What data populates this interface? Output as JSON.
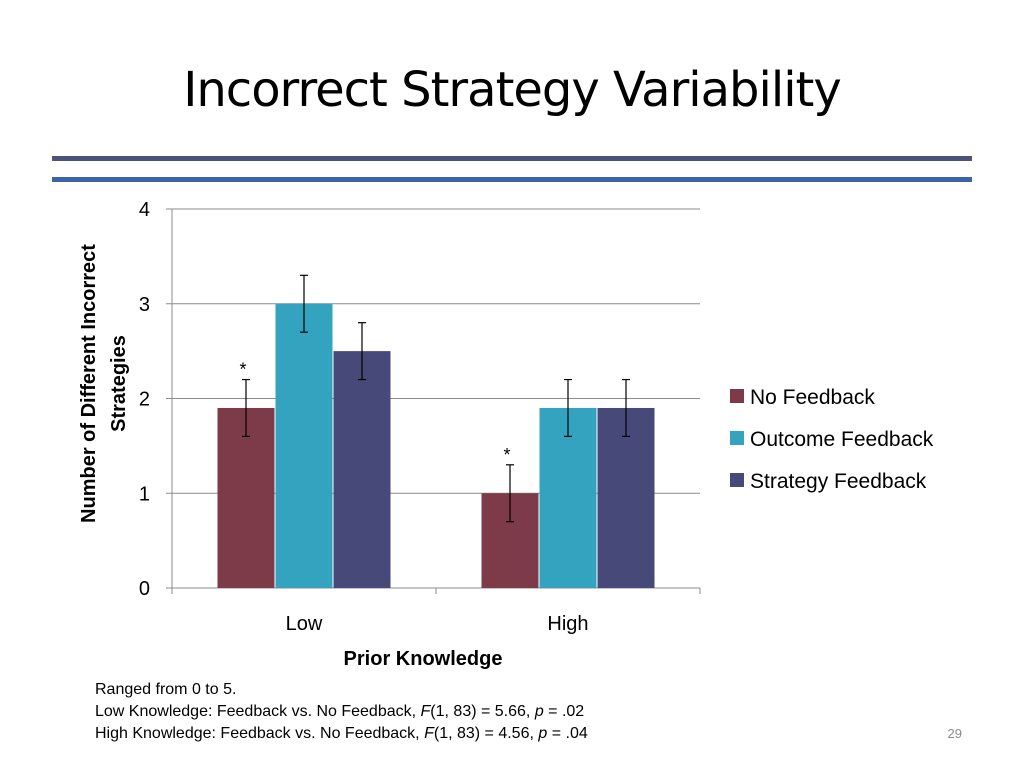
{
  "slide": {
    "title": "Incorrect Strategy Variability",
    "number": "29",
    "notes": {
      "range": "Ranged from 0 to 5.",
      "low": {
        "prefix": "Low Knowledge: Feedback vs. No Feedback, ",
        "f": "F",
        "stats": "(1, 83) = 5.66, ",
        "p": "p",
        "pvalue": " = .02"
      },
      "high": {
        "prefix": "High Knowledge: Feedback vs. No Feedback, ",
        "f": "F",
        "stats": "(1, 83) = 4.56, ",
        "p": "p",
        "pvalue": " = .04"
      }
    },
    "colors": {
      "rule_top": "#4a5279",
      "rule_bottom": "#3a64a6"
    }
  },
  "chart_data": {
    "type": "bar",
    "categories": [
      "Low",
      "High"
    ],
    "series": [
      {
        "name": "No Feedback",
        "values": [
          1.9,
          1.0
        ],
        "errors": [
          0.3,
          0.3
        ],
        "color": "#7d3a49"
      },
      {
        "name": "Outcome Feedback",
        "values": [
          3.0,
          1.9
        ],
        "errors": [
          0.3,
          0.3
        ],
        "color": "#33a3c0"
      },
      {
        "name": "Strategy Feedback",
        "values": [
          2.5,
          1.9
        ],
        "errors": [
          0.3,
          0.3
        ],
        "color": "#474a78"
      }
    ],
    "xlabel": "Prior Knowledge",
    "ylabel": [
      "Number of Different Incorrect",
      "Strategies"
    ],
    "ylim": [
      0,
      4
    ],
    "yticks": [
      "0",
      "1",
      "2",
      "3",
      "4"
    ],
    "grid": true,
    "legend": "right",
    "annotations": [
      {
        "text": "*",
        "category": "Low",
        "series": "No Feedback"
      },
      {
        "text": "*",
        "category": "High",
        "series": "No Feedback"
      }
    ]
  }
}
